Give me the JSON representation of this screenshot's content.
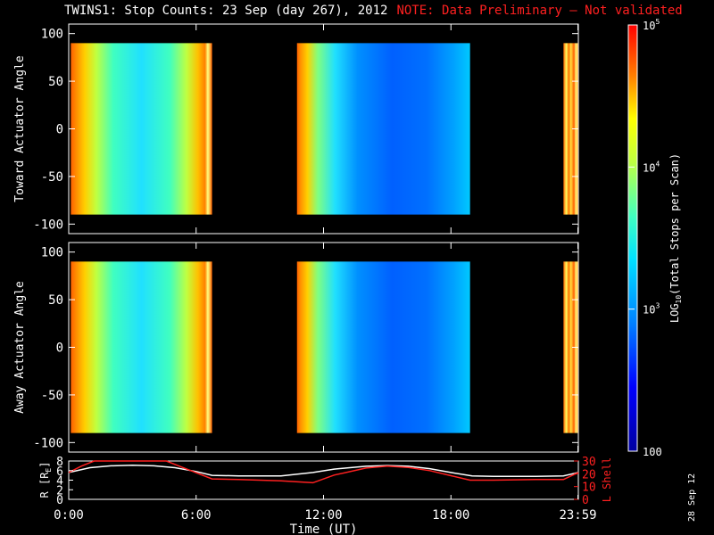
{
  "header": {
    "title": "TWINS1: Stop Counts: 23 Sep (day 267), 2012",
    "note": "NOTE: Data Preliminary – Not validated"
  },
  "stamp": "28 Sep 12",
  "colors": {
    "background": "#000000",
    "axes": "#ffffff",
    "note": "#ff2020",
    "lshell": "#ff2020",
    "radius": "#ffffff"
  },
  "chart_data": [
    {
      "type": "heatmap",
      "ylabel": "Toward Actuator Angle",
      "ylim": [
        -110,
        110
      ],
      "yticks": [
        100,
        50,
        0,
        -50,
        -100
      ],
      "xlim": [
        0,
        24
      ],
      "data_y_range": [
        -90,
        90
      ],
      "segments": [
        {
          "start_h": 0.1,
          "end_h": 6.75,
          "profile": "edges-hot-center-cyan"
        },
        {
          "start_h": 10.75,
          "end_h": 18.9,
          "profile": "edge-hot-center-blue"
        },
        {
          "start_h": 23.3,
          "end_h": 24.0,
          "profile": "stripes"
        }
      ]
    },
    {
      "type": "heatmap",
      "ylabel": "Away Actuator Angle",
      "ylim": [
        -110,
        110
      ],
      "yticks": [
        100,
        50,
        0,
        -50,
        -100
      ],
      "xlim": [
        0,
        24
      ],
      "data_y_range": [
        -90,
        90
      ],
      "segments": [
        {
          "start_h": 0.1,
          "end_h": 6.75,
          "profile": "edges-hot-center-cyan"
        },
        {
          "start_h": 10.75,
          "end_h": 18.9,
          "profile": "edge-hot-center-blue"
        },
        {
          "start_h": 23.3,
          "end_h": 24.0,
          "profile": "stripes"
        }
      ]
    },
    {
      "type": "line",
      "ylabel_left": "R [R",
      "ylabel_left_sub": "E",
      "ylabel_right": "L Shell",
      "xlabel": "Time (UT)",
      "xtick_labels": [
        "0:00",
        "6:00",
        "12:00",
        "18:00",
        "23:59"
      ],
      "xtick_hours": [
        0,
        6,
        12,
        18,
        23.98
      ],
      "xlim": [
        0,
        24
      ],
      "ylim_left": [
        0,
        8
      ],
      "yticks_left": [
        0,
        2,
        4,
        6,
        8
      ],
      "ylim_right": [
        0,
        30
      ],
      "yticks_right": [
        0,
        10,
        20,
        30
      ],
      "series": [
        {
          "axis": "left",
          "color": "#ffffff",
          "x": [
            0,
            1,
            2,
            3,
            4,
            5,
            6,
            6.75,
            8,
            10,
            11.5,
            12.5,
            14,
            15,
            16,
            17,
            18,
            19,
            20,
            22,
            23.3,
            24
          ],
          "y": [
            5.6,
            6.6,
            7.0,
            7.1,
            7.0,
            6.6,
            5.8,
            5.0,
            4.9,
            4.9,
            5.6,
            6.3,
            6.9,
            7.05,
            6.9,
            6.4,
            5.6,
            4.9,
            4.8,
            4.8,
            4.9,
            5.6
          ]
        },
        {
          "axis": "right",
          "color": "#ff2020",
          "x": [
            0,
            0.6,
            1.2,
            4.6,
            5.2,
            6.75,
            8,
            10,
            11.5,
            12.5,
            14,
            15,
            16,
            17,
            18,
            18.9,
            19.3,
            20,
            22,
            23.3,
            24
          ],
          "y": [
            21,
            26,
            31,
            31,
            26,
            16,
            15.5,
            14.5,
            13,
            19,
            24.5,
            26,
            25,
            22.5,
            18.5,
            15,
            15,
            15,
            15.5,
            15.5,
            21
          ]
        }
      ]
    }
  ],
  "colorbar": {
    "label": "LOG10(Total Stops per Scan)",
    "label_prefix": "LOG",
    "label_sub": "10",
    "label_suffix": "(Total Stops per Scan)",
    "scale": "log",
    "range": [
      100,
      100000
    ],
    "ticks": [
      {
        "value": 100,
        "text": "100"
      },
      {
        "value": 1000,
        "text": "10",
        "sup": "3"
      },
      {
        "value": 10000,
        "text": "10",
        "sup": "4"
      },
      {
        "value": 100000,
        "text": "10",
        "sup": "5"
      }
    ]
  }
}
